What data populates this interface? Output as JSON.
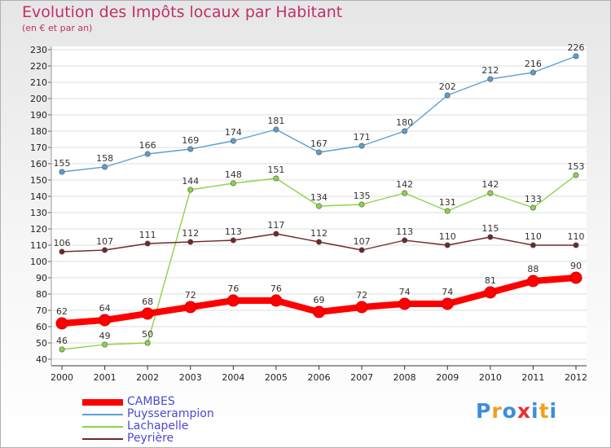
{
  "chart_data": {
    "type": "line",
    "title": "Evolution des Impôts locaux par Habitant",
    "subtitle": "(en € et par an)",
    "xlabel": "",
    "ylabel": "",
    "ylim": [
      40,
      230
    ],
    "ytick_step": 10,
    "x": [
      "2000",
      "2001",
      "2002",
      "2003",
      "2004",
      "2005",
      "2006",
      "2007",
      "2008",
      "2009",
      "2010",
      "2011",
      "2012"
    ],
    "series": [
      {
        "name": "Puysserampion",
        "color": "#5a9fd4",
        "values": [
          155,
          158,
          166,
          169,
          174,
          181,
          167,
          171,
          180,
          202,
          212,
          216,
          226
        ]
      },
      {
        "name": "Lachapelle",
        "color": "#8bd44a",
        "values": [
          46,
          49,
          50,
          144,
          148,
          151,
          134,
          135,
          142,
          131,
          142,
          133,
          153
        ]
      },
      {
        "name": "Peyrière",
        "color": "#702828",
        "values": [
          106,
          107,
          111,
          112,
          113,
          117,
          112,
          107,
          113,
          110,
          115,
          110,
          110
        ]
      },
      {
        "name": "CAMBES",
        "color": "#ff0000",
        "values": [
          62,
          64,
          68,
          72,
          76,
          76,
          69,
          72,
          74,
          74,
          81,
          88,
          90
        ]
      }
    ],
    "legend": [
      "CAMBES",
      "Puysserampion",
      "Lachapelle",
      "Peyrière"
    ]
  },
  "logo": {
    "text": "Proxiti",
    "letters": [
      "P",
      "r",
      "o",
      "x",
      "i",
      "t",
      "i"
    ],
    "colors": [
      "#3a8fd8",
      "#f0a020",
      "#3a8fd8",
      "#e83030",
      "#3a8fd8",
      "#f0a020",
      "#3a8fd8"
    ]
  }
}
